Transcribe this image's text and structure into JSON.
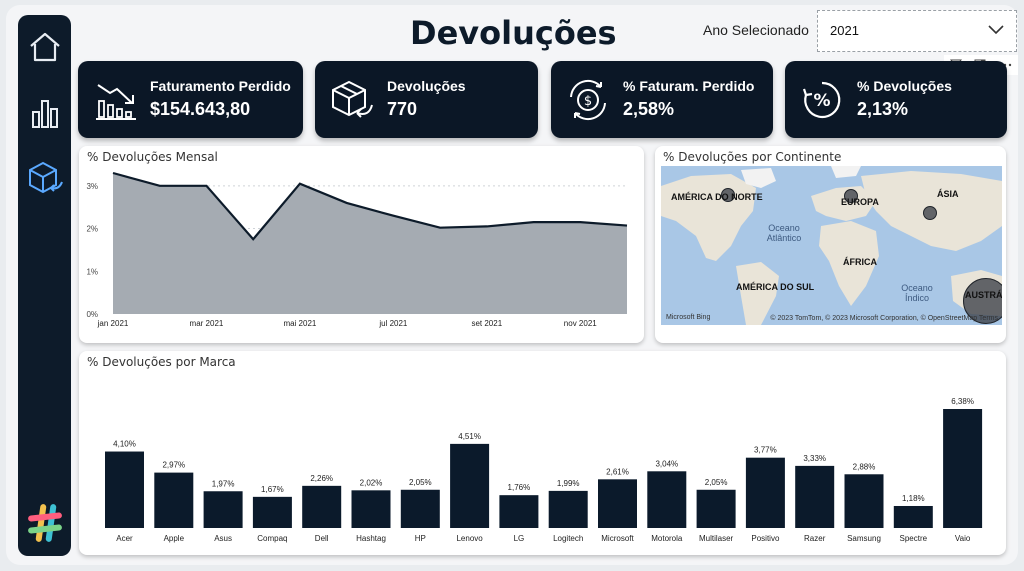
{
  "title": "Devoluções",
  "filter": {
    "label": "Ano Selecionado",
    "value": "2021"
  },
  "nav": [
    {
      "icon": "home-icon"
    },
    {
      "icon": "bar-chart-icon"
    },
    {
      "icon": "box-return-icon"
    }
  ],
  "kpis": [
    {
      "label": "Faturamento Perdido",
      "value": "$154.643,80",
      "icon": "revenue-down-icon"
    },
    {
      "label": "Devoluções",
      "value": "770",
      "icon": "package-return-icon"
    },
    {
      "label": "% Faturam. Perdido",
      "value": "2,58%",
      "icon": "money-cycle-icon"
    },
    {
      "label": "% Devoluções",
      "value": "2,13%",
      "icon": "percent-cycle-icon"
    }
  ],
  "monthly": {
    "title": "% Devoluções Mensal",
    "y_ticks": [
      "0%",
      "1%",
      "2%",
      "3%"
    ],
    "x_ticks": [
      "jan 2021",
      "mar 2021",
      "mai 2021",
      "jul 2021",
      "set 2021",
      "nov 2021"
    ]
  },
  "continents": {
    "title": "% Devoluções por Continente",
    "labels": [
      "AMÉRICA DO NORTE",
      "EUROPA",
      "ÁSIA",
      "ÁFRICA",
      "AMÉRICA DO SUL",
      "AUSTRÁ"
    ],
    "oceans": [
      "Oceano Atlântico",
      "Oceano Índico"
    ],
    "brand": "Microsoft Bing",
    "attribution": "© 2023 TomTom, © 2023 Microsoft Corporation, © OpenStreetMap  Terms"
  },
  "brands_title": "% Devoluções por Marca",
  "chart_data": [
    {
      "type": "area",
      "title": "% Devoluções Mensal",
      "x": [
        "jan 2021",
        "fev 2021",
        "mar 2021",
        "abr 2021",
        "mai 2021",
        "jun 2021",
        "jul 2021",
        "ago 2021",
        "set 2021",
        "out 2021",
        "nov 2021",
        "dez 2021"
      ],
      "values": [
        3.3,
        3.0,
        3.0,
        1.75,
        3.05,
        2.6,
        2.3,
        2.02,
        2.05,
        2.15,
        2.15,
        2.07
      ],
      "ylim": [
        0,
        3.3
      ],
      "grid": true
    },
    {
      "type": "bar",
      "title": "% Devoluções por Marca",
      "categories": [
        "Acer",
        "Apple",
        "Asus",
        "Compaq",
        "Dell",
        "Hashtag",
        "HP",
        "Lenovo",
        "LG",
        "Logitech",
        "Microsoft",
        "Motorola",
        "Multilaser",
        "Positivo",
        "Razer",
        "Samsung",
        "Spectre",
        "Vaio"
      ],
      "values": [
        4.1,
        2.97,
        1.97,
        1.67,
        2.26,
        2.02,
        2.05,
        4.51,
        1.76,
        1.99,
        2.61,
        3.04,
        2.05,
        3.77,
        3.33,
        2.88,
        1.18,
        6.38
      ],
      "labels": [
        "4,10%",
        "2,97%",
        "1,97%",
        "1,67%",
        "2,26%",
        "2,02%",
        "2,05%",
        "4,51%",
        "1,76%",
        "1,99%",
        "2,61%",
        "3,04%",
        "2,05%",
        "3,77%",
        "3,33%",
        "2,88%",
        "1,18%",
        "6,38%"
      ],
      "ylim": [
        0,
        6.38
      ],
      "color": "#0b1a2b"
    }
  ]
}
